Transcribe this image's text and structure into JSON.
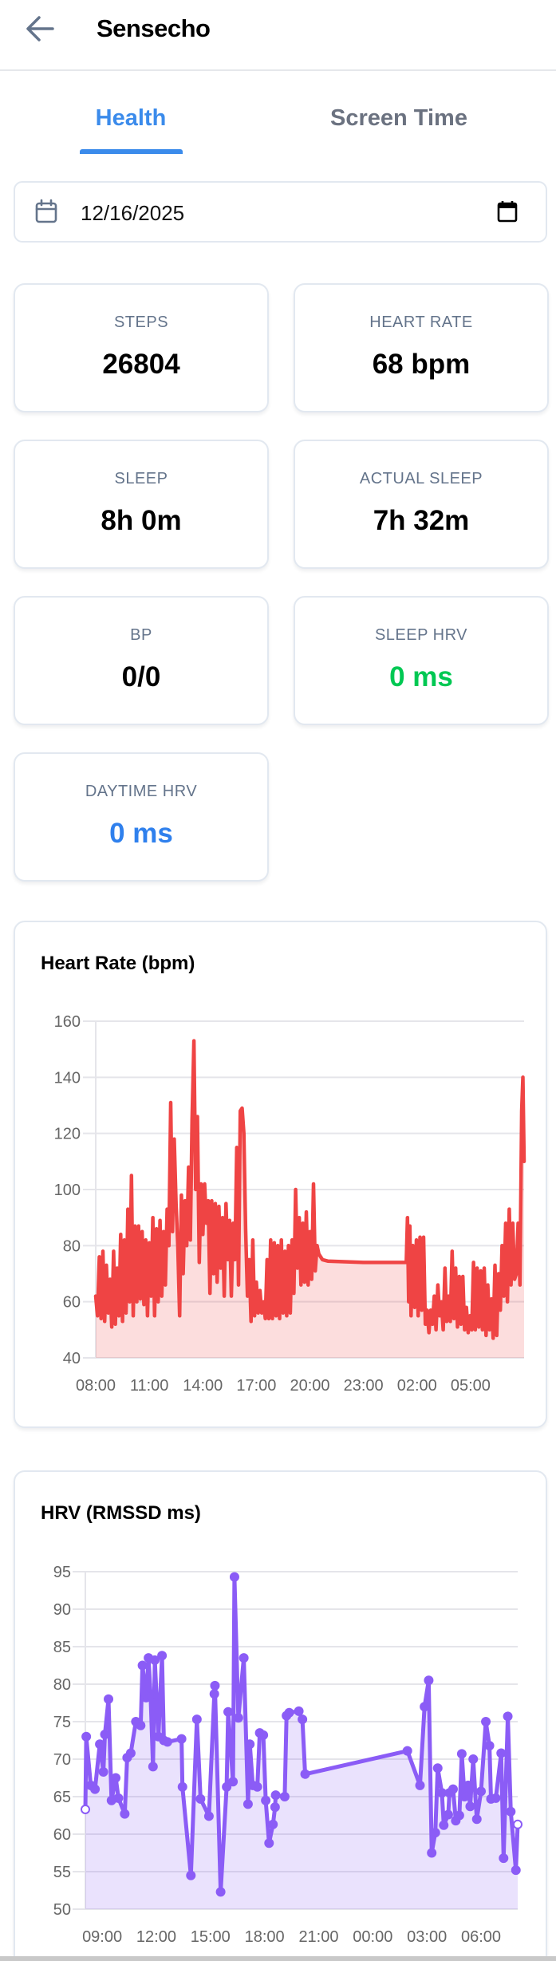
{
  "header": {
    "title": "Sensecho",
    "back_icon": "arrow-left-icon"
  },
  "tabs": [
    {
      "label": "Health",
      "active": true
    },
    {
      "label": "Screen Time",
      "active": false
    }
  ],
  "accent_color": "#3b8beb",
  "date_picker": {
    "value": "12/16/2025",
    "left_icon": "calendar-outline-icon",
    "right_icon": "calendar-filled-icon"
  },
  "stats": [
    {
      "label": "STEPS",
      "value": "26804",
      "color": "#000000"
    },
    {
      "label": "HEART RATE",
      "value": "68 bpm",
      "color": "#000000"
    },
    {
      "label": "SLEEP",
      "value": "8h 0m",
      "color": "#000000"
    },
    {
      "label": "ACTUAL SLEEP",
      "value": "7h 32m",
      "color": "#000000"
    },
    {
      "label": "BP",
      "value": "0/0",
      "color": "#000000"
    },
    {
      "label": "SLEEP HRV",
      "value": "0 ms",
      "color": "#00c853"
    },
    {
      "label": "DAYTIME HRV",
      "value": "0 ms",
      "color": "#2f80ed"
    }
  ],
  "chart_data": [
    {
      "type": "area",
      "title": "Heart Rate (bpm)",
      "xlabel": "",
      "ylabel": "",
      "ylim": [
        40,
        160
      ],
      "yticks": [
        "160",
        "140",
        "120",
        "100",
        "80",
        "60",
        "40"
      ],
      "xticks": [
        "08:00",
        "11:00",
        "14:00",
        "17:00",
        "20:00",
        "23:00",
        "02:00",
        "05:00"
      ],
      "grid": true,
      "line_color": "#ef4444",
      "fill_color": "rgba(239,68,68,0.18)",
      "points": [
        [
          "08:00",
          62
        ],
        [
          "08:06",
          55
        ],
        [
          "08:12",
          76
        ],
        [
          "08:18",
          54
        ],
        [
          "08:24",
          78
        ],
        [
          "08:30",
          53
        ],
        [
          "08:36",
          73
        ],
        [
          "08:42",
          56
        ],
        [
          "08:48",
          68
        ],
        [
          "08:54",
          51
        ],
        [
          "09:00",
          78
        ],
        [
          "09:06",
          52
        ],
        [
          "09:12",
          72
        ],
        [
          "09:18",
          55
        ],
        [
          "09:24",
          84
        ],
        [
          "09:30",
          53
        ],
        [
          "09:36",
          82
        ],
        [
          "09:42",
          56
        ],
        [
          "09:48",
          93
        ],
        [
          "09:54",
          60
        ],
        [
          "10:00",
          105
        ],
        [
          "10:06",
          55
        ],
        [
          "10:12",
          87
        ],
        [
          "10:18",
          60
        ],
        [
          "10:24",
          87
        ],
        [
          "10:30",
          61
        ],
        [
          "10:36",
          85
        ],
        [
          "10:42",
          59
        ],
        [
          "10:48",
          82
        ],
        [
          "10:54",
          55
        ],
        [
          "11:00",
          81
        ],
        [
          "11:06",
          62
        ],
        [
          "11:12",
          90
        ],
        [
          "11:18",
          55
        ],
        [
          "11:24",
          86
        ],
        [
          "11:30",
          60
        ],
        [
          "11:36",
          89
        ],
        [
          "11:42",
          62
        ],
        [
          "11:48",
          85
        ],
        [
          "11:54",
          66
        ],
        [
          "12:00",
          93
        ],
        [
          "12:06",
          80
        ],
        [
          "12:12",
          131
        ],
        [
          "12:18",
          85
        ],
        [
          "12:24",
          118
        ],
        [
          "12:30",
          95
        ],
        [
          "12:36",
          80
        ],
        [
          "12:42",
          55
        ],
        [
          "12:48",
          98
        ],
        [
          "12:54",
          70
        ],
        [
          "13:00",
          96
        ],
        [
          "13:06",
          80
        ],
        [
          "13:12",
          108
        ],
        [
          "13:18",
          82
        ],
        [
          "13:24",
          125
        ],
        [
          "13:30",
          153
        ],
        [
          "13:36",
          100
        ],
        [
          "13:42",
          126
        ],
        [
          "13:48",
          74
        ],
        [
          "13:54",
          102
        ],
        [
          "14:00",
          84
        ],
        [
          "14:06",
          102
        ],
        [
          "14:12",
          88
        ],
        [
          "14:18",
          96
        ],
        [
          "14:24",
          63
        ],
        [
          "14:30",
          96
        ],
        [
          "14:36",
          70
        ],
        [
          "14:42",
          95
        ],
        [
          "14:48",
          67
        ],
        [
          "14:54",
          94
        ],
        [
          "15:00",
          72
        ],
        [
          "15:06",
          90
        ],
        [
          "15:12",
          62
        ],
        [
          "15:18",
          95
        ],
        [
          "15:24",
          75
        ],
        [
          "15:30",
          89
        ],
        [
          "15:36",
          62
        ],
        [
          "15:42",
          88
        ],
        [
          "15:48",
          75
        ],
        [
          "15:54",
          115
        ],
        [
          "16:00",
          66
        ],
        [
          "16:06",
          128
        ],
        [
          "16:12",
          129
        ],
        [
          "16:18",
          120
        ],
        [
          "16:24",
          86
        ],
        [
          "16:30",
          62
        ],
        [
          "16:36",
          75
        ],
        [
          "16:42",
          53
        ],
        [
          "16:48",
          82
        ],
        [
          "16:54",
          55
        ],
        [
          "17:00",
          67
        ],
        [
          "17:06",
          56
        ],
        [
          "17:12",
          64
        ],
        [
          "17:18",
          56
        ],
        [
          "17:24",
          60
        ],
        [
          "17:30",
          54
        ],
        [
          "17:36",
          75
        ],
        [
          "17:42",
          54
        ],
        [
          "17:48",
          82
        ],
        [
          "17:54",
          54
        ],
        [
          "18:00",
          81
        ],
        [
          "18:06",
          55
        ],
        [
          "18:12",
          80
        ],
        [
          "18:18",
          54
        ],
        [
          "18:24",
          82
        ],
        [
          "18:30",
          56
        ],
        [
          "18:36",
          78
        ],
        [
          "18:42",
          55
        ],
        [
          "18:48",
          80
        ],
        [
          "18:54",
          56
        ],
        [
          "19:00",
          82
        ],
        [
          "19:06",
          63
        ],
        [
          "19:12",
          100
        ],
        [
          "19:18",
          72
        ],
        [
          "19:24",
          90
        ],
        [
          "19:30",
          66
        ],
        [
          "19:36",
          88
        ],
        [
          "19:42",
          67
        ],
        [
          "19:48",
          92
        ],
        [
          "19:54",
          66
        ],
        [
          "20:00",
          85
        ],
        [
          "20:06",
          68
        ],
        [
          "20:12",
          102
        ],
        [
          "20:18",
          71
        ],
        [
          "20:24",
          80
        ],
        [
          "20:30",
          77
        ],
        [
          "20:42",
          75
        ],
        [
          "21:00",
          74.5
        ],
        [
          "23:00",
          74
        ],
        [
          "01:24",
          74
        ],
        [
          "01:28",
          90
        ],
        [
          "01:32",
          60
        ],
        [
          "01:36",
          87
        ],
        [
          "01:40",
          55
        ],
        [
          "01:46",
          80
        ],
        [
          "01:52",
          58
        ],
        [
          "01:58",
          82
        ],
        [
          "02:04",
          55
        ],
        [
          "02:10",
          83
        ],
        [
          "02:16",
          57
        ],
        [
          "02:22",
          83
        ],
        [
          "02:28",
          52
        ],
        [
          "02:34",
          57
        ],
        [
          "02:40",
          49
        ],
        [
          "02:46",
          57
        ],
        [
          "02:52",
          52
        ],
        [
          "02:58",
          62
        ],
        [
          "03:04",
          50
        ],
        [
          "03:10",
          66
        ],
        [
          "03:16",
          55
        ],
        [
          "03:22",
          60
        ],
        [
          "03:28",
          50
        ],
        [
          "03:34",
          72
        ],
        [
          "03:40",
          53
        ],
        [
          "03:46",
          62
        ],
        [
          "03:52",
          53
        ],
        [
          "03:58",
          78
        ],
        [
          "04:04",
          54
        ],
        [
          "04:10",
          72
        ],
        [
          "04:16",
          51
        ],
        [
          "04:22",
          69
        ],
        [
          "04:28",
          52
        ],
        [
          "04:34",
          69
        ],
        [
          "04:40",
          50
        ],
        [
          "04:46",
          58
        ],
        [
          "04:52",
          49
        ],
        [
          "04:58",
          55
        ],
        [
          "05:04",
          50
        ],
        [
          "05:10",
          74
        ],
        [
          "05:16",
          50
        ],
        [
          "05:22",
          72
        ],
        [
          "05:28",
          51
        ],
        [
          "05:34",
          71
        ],
        [
          "05:40",
          50
        ],
        [
          "05:46",
          72
        ],
        [
          "05:52",
          48
        ],
        [
          "05:58",
          66
        ],
        [
          "06:04",
          50
        ],
        [
          "06:10",
          61
        ],
        [
          "06:16",
          47
        ],
        [
          "06:22",
          73
        ],
        [
          "06:28",
          48
        ],
        [
          "06:34",
          70
        ],
        [
          "06:40",
          57
        ],
        [
          "06:46",
          80
        ],
        [
          "06:52",
          62
        ],
        [
          "06:58",
          88
        ],
        [
          "07:04",
          60
        ],
        [
          "07:10",
          93
        ],
        [
          "07:16",
          66
        ],
        [
          "07:22",
          88
        ],
        [
          "07:28",
          68
        ],
        [
          "07:34",
          70
        ],
        [
          "07:40",
          88
        ],
        [
          "07:46",
          66
        ],
        [
          "07:52",
          128
        ],
        [
          "07:56",
          140
        ],
        [
          "08:00",
          110
        ]
      ]
    },
    {
      "type": "area",
      "title": "HRV (RMSSD ms)",
      "xlabel": "",
      "ylabel": "",
      "ylim": [
        50,
        95
      ],
      "yticks": [
        "95",
        "90",
        "85",
        "80",
        "75",
        "70",
        "65",
        "60",
        "55",
        "50"
      ],
      "xticks": [
        "09:00",
        "12:00",
        "15:00",
        "18:00",
        "21:00",
        "00:00",
        "03:00",
        "06:00"
      ],
      "grid": true,
      "markers": true,
      "line_color": "#8b5cf6",
      "fill_color": "rgba(139,92,246,0.18)",
      "points": [
        [
          "08:04",
          63.3
        ],
        [
          "08:07",
          73
        ],
        [
          "08:22",
          66.5
        ],
        [
          "08:36",
          66
        ],
        [
          "08:52",
          72
        ],
        [
          "09:04",
          68.3
        ],
        [
          "09:09",
          73.3
        ],
        [
          "09:21",
          78
        ],
        [
          "09:31",
          64.5
        ],
        [
          "09:45",
          67.5
        ],
        [
          "09:54",
          64.8
        ],
        [
          "10:15",
          62.7
        ],
        [
          "10:23",
          70.2
        ],
        [
          "10:35",
          70.8
        ],
        [
          "10:52",
          75
        ],
        [
          "11:08",
          74.5
        ],
        [
          "11:14",
          82.5
        ],
        [
          "11:26",
          78.2
        ],
        [
          "11:34",
          83.5
        ],
        [
          "11:41",
          78.5
        ],
        [
          "11:49",
          69
        ],
        [
          "11:55",
          83.2
        ],
        [
          "12:07",
          73
        ],
        [
          "12:19",
          83.8
        ],
        [
          "12:25",
          72.5
        ],
        [
          "12:37",
          72.3
        ],
        [
          "13:24",
          72.7
        ],
        [
          "13:27",
          66.3
        ],
        [
          "13:55",
          54.5
        ],
        [
          "14:15",
          75.3
        ],
        [
          "14:27",
          64.7
        ],
        [
          "14:55",
          62.4
        ],
        [
          "15:13",
          78.7
        ],
        [
          "15:15",
          79.8
        ],
        [
          "15:34",
          52.3
        ],
        [
          "15:54",
          66.3
        ],
        [
          "15:59",
          76.3
        ],
        [
          "16:15",
          67
        ],
        [
          "16:20",
          94.3
        ],
        [
          "16:33",
          75.5
        ],
        [
          "16:51",
          83.5
        ],
        [
          "17:05",
          64
        ],
        [
          "17:11",
          72
        ],
        [
          "17:21",
          66.5
        ],
        [
          "17:36",
          66.3
        ],
        [
          "17:44",
          73.5
        ],
        [
          "17:56",
          73.2
        ],
        [
          "18:04",
          64.5
        ],
        [
          "18:15",
          58.8
        ],
        [
          "18:28",
          61.3
        ],
        [
          "18:35",
          63.6
        ],
        [
          "18:37",
          65.2
        ],
        [
          "19:07",
          65
        ],
        [
          "19:13",
          75.8
        ],
        [
          "19:22",
          76.2
        ],
        [
          "19:54",
          76.4
        ],
        [
          "20:06",
          75.3
        ],
        [
          "20:15",
          68
        ],
        [
          "01:55",
          71.1
        ],
        [
          "02:37",
          66.5
        ],
        [
          "02:52",
          77
        ],
        [
          "03:06",
          80.5
        ],
        [
          "03:16",
          57.5
        ],
        [
          "03:28",
          60.2
        ],
        [
          "03:36",
          68.8
        ],
        [
          "03:50",
          65.5
        ],
        [
          "03:56",
          61.2
        ],
        [
          "04:11",
          62.6
        ],
        [
          "04:15",
          65.5
        ],
        [
          "04:27",
          66
        ],
        [
          "04:36",
          61.8
        ],
        [
          "04:48",
          62.5
        ],
        [
          "04:56",
          70.7
        ],
        [
          "05:05",
          65
        ],
        [
          "05:17",
          66.5
        ],
        [
          "05:24",
          63.7
        ],
        [
          "05:34",
          70
        ],
        [
          "05:46",
          62
        ],
        [
          "06:00",
          65.7
        ],
        [
          "06:16",
          75
        ],
        [
          "06:28",
          71.8
        ],
        [
          "06:33",
          64.7
        ],
        [
          "06:49",
          64.8
        ],
        [
          "07:07",
          70.8
        ],
        [
          "07:15",
          56.8
        ],
        [
          "07:29",
          75.7
        ],
        [
          "07:39",
          63
        ],
        [
          "07:56",
          55.2
        ],
        [
          "08:02",
          61.3
        ]
      ]
    }
  ]
}
